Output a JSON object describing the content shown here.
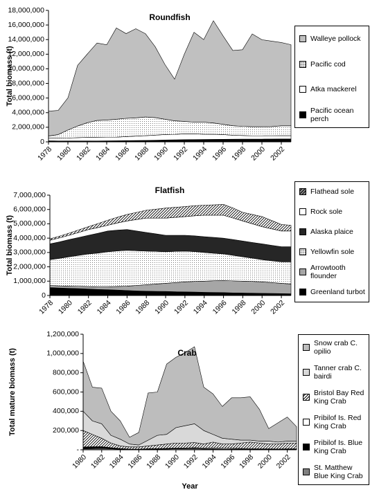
{
  "chart_data": [
    {
      "type": "area",
      "stacked": true,
      "title": "Roundfish",
      "ylabel": "Total biomass (t)",
      "x": [
        1978,
        1979,
        1980,
        1981,
        1982,
        1983,
        1984,
        1985,
        1986,
        1987,
        1988,
        1989,
        1990,
        1991,
        1992,
        1993,
        1994,
        1995,
        1996,
        1997,
        1998,
        1999,
        2000,
        2001,
        2002,
        2003
      ],
      "xlim": [
        1978,
        2003
      ],
      "xticks": [
        1978,
        1980,
        1982,
        1984,
        1986,
        1988,
        1990,
        1992,
        1994,
        1996,
        1998,
        2000,
        2002
      ],
      "ylim": [
        0,
        18000000
      ],
      "yticks": [
        {
          "value": 0,
          "label": "0"
        },
        {
          "value": 2000000,
          "label": "2,000,000"
        },
        {
          "value": 4000000,
          "label": "4,000,000"
        },
        {
          "value": 6000000,
          "label": "6,000,000"
        },
        {
          "value": 8000000,
          "label": "8,000,000"
        },
        {
          "value": 10000000,
          "label": "10,000,000"
        },
        {
          "value": 12000000,
          "label": "12,000,000"
        },
        {
          "value": 14000000,
          "label": "14,000,000"
        },
        {
          "value": 16000000,
          "label": "16,000,000"
        },
        {
          "value": 18000000,
          "label": "18,000,000"
        }
      ],
      "series": [
        {
          "name": "Pacific ocean perch",
          "color": "#000000",
          "values": [
            150000,
            130000,
            120000,
            120000,
            120000,
            130000,
            140000,
            150000,
            170000,
            190000,
            200000,
            220000,
            250000,
            280000,
            300000,
            320000,
            330000,
            340000,
            350000,
            360000,
            370000,
            380000,
            380000,
            390000,
            400000,
            400000
          ]
        },
        {
          "name": "Atka mackerel",
          "color": "#ffffff",
          "values": [
            350000,
            370000,
            400000,
            450000,
            500000,
            500000,
            500000,
            500000,
            550000,
            600000,
            650000,
            700000,
            750000,
            750000,
            800000,
            780000,
            720000,
            700000,
            650000,
            550000,
            500000,
            450000,
            450000,
            450000,
            450000,
            450000
          ]
        },
        {
          "name": "Pacific cod",
          "color": "#e6e6e6",
          "pattern": "dots",
          "values": [
            300000,
            500000,
            1100000,
            1600000,
            2000000,
            2300000,
            2350000,
            2450000,
            2500000,
            2500000,
            2550000,
            2400000,
            2100000,
            1850000,
            1700000,
            1600000,
            1650000,
            1550000,
            1400000,
            1300000,
            1250000,
            1250000,
            1250000,
            1250000,
            1350000,
            1350000
          ]
        },
        {
          "name": "Walleye pollock",
          "color": "#c0c0c0",
          "values": [
            3400000,
            3300000,
            4400000,
            8300000,
            9400000,
            10600000,
            10300000,
            12500000,
            11600000,
            12200000,
            11400000,
            9700000,
            7500000,
            5700000,
            9200000,
            12300000,
            11300000,
            14000000,
            12100000,
            10300000,
            10500000,
            12700000,
            11900000,
            11700000,
            11400000,
            11100000
          ]
        }
      ]
    },
    {
      "type": "area",
      "stacked": true,
      "title": "Flatfish",
      "ylabel": "Total biomass (t)",
      "x": [
        1978,
        1979,
        1980,
        1981,
        1982,
        1983,
        1984,
        1985,
        1986,
        1987,
        1988,
        1989,
        1990,
        1991,
        1992,
        1993,
        1994,
        1995,
        1996,
        1997,
        1998,
        1999,
        2000,
        2001,
        2002,
        2003
      ],
      "xlim": [
        1978,
        2003
      ],
      "xticks": [
        1978,
        1980,
        1982,
        1984,
        1986,
        1988,
        1990,
        1992,
        1994,
        1996,
        1998,
        2000,
        2002
      ],
      "ylim": [
        0,
        7000000
      ],
      "yticks": [
        {
          "value": 0,
          "label": "0"
        },
        {
          "value": 1000000,
          "label": "1,000,000"
        },
        {
          "value": 2000000,
          "label": "2,000,000"
        },
        {
          "value": 3000000,
          "label": "3,000,000"
        },
        {
          "value": 4000000,
          "label": "4,000,000"
        },
        {
          "value": 5000000,
          "label": "5,000,000"
        },
        {
          "value": 6000000,
          "label": "6,000,000"
        },
        {
          "value": 7000000,
          "label": "7,000,000"
        }
      ],
      "series": [
        {
          "name": "Greenland turbot",
          "color": "#000000",
          "values": [
            550000,
            520000,
            500000,
            480000,
            450000,
            420000,
            400000,
            380000,
            350000,
            320000,
            300000,
            290000,
            280000,
            260000,
            250000,
            240000,
            220000,
            210000,
            200000,
            180000,
            170000,
            160000,
            150000,
            140000,
            130000,
            120000
          ]
        },
        {
          "name": "Arrowtooth flounder",
          "color": "#a6a6a6",
          "values": [
            150000,
            150000,
            150000,
            160000,
            170000,
            180000,
            200000,
            250000,
            300000,
            380000,
            450000,
            510000,
            570000,
            640000,
            700000,
            740000,
            780000,
            820000,
            850000,
            840000,
            830000,
            820000,
            800000,
            760000,
            720000,
            680000
          ]
        },
        {
          "name": "Yellowfin sole",
          "color": "#eeeeee",
          "pattern": "dots",
          "values": [
            1800000,
            1920000,
            2050000,
            2160000,
            2280000,
            2360000,
            2450000,
            2480000,
            2500000,
            2420000,
            2350000,
            2280000,
            2200000,
            2180000,
            2150000,
            2080000,
            2000000,
            1920000,
            1850000,
            1780000,
            1700000,
            1620000,
            1550000,
            1520000,
            1500000,
            1550000
          ]
        },
        {
          "name": "Alaska plaice",
          "color": "#262626",
          "values": [
            1100000,
            1150000,
            1200000,
            1250000,
            1300000,
            1380000,
            1450000,
            1450000,
            1450000,
            1380000,
            1300000,
            1220000,
            1150000,
            1120000,
            1100000,
            1100000,
            1100000,
            1100000,
            1100000,
            1100000,
            1100000,
            1100000,
            1100000,
            1080000,
            1050000,
            1050000
          ]
        },
        {
          "name": "Rock sole",
          "color": "#ffffff",
          "values": [
            250000,
            280000,
            300000,
            350000,
            400000,
            400000,
            400000,
            500000,
            600000,
            800000,
            1000000,
            1100000,
            1200000,
            1250000,
            1300000,
            1400000,
            1500000,
            1550000,
            1600000,
            1500000,
            1400000,
            1300000,
            1200000,
            1150000,
            1100000,
            1100000
          ]
        },
        {
          "name": "Flathead sole",
          "color": "#8c8c8c",
          "pattern": "hatch",
          "values": [
            100000,
            120000,
            150000,
            180000,
            200000,
            280000,
            350000,
            400000,
            450000,
            500000,
            550000,
            620000,
            700000,
            700000,
            700000,
            700000,
            700000,
            720000,
            750000,
            700000,
            600000,
            650000,
            700000,
            580000,
            450000,
            400000
          ]
        }
      ]
    },
    {
      "type": "area",
      "stacked": true,
      "title": "Crab",
      "ylabel": "Total mature biomass (t)",
      "xlabel": "Year",
      "x": [
        1980,
        1981,
        1982,
        1983,
        1984,
        1985,
        1986,
        1987,
        1988,
        1989,
        1990,
        1991,
        1992,
        1993,
        1994,
        1995,
        1996,
        1997,
        1998,
        1999,
        2000,
        2001,
        2002,
        2003
      ],
      "xlim": [
        1980,
        2003
      ],
      "xticks": [
        1980,
        1982,
        1984,
        1986,
        1988,
        1990,
        1992,
        1994,
        1996,
        1998,
        2000,
        2002
      ],
      "ylim": [
        0,
        1200000
      ],
      "yticks": [
        {
          "value": 0,
          "label": "-"
        },
        {
          "value": 200000,
          "label": "200,000"
        },
        {
          "value": 400000,
          "label": "400,000"
        },
        {
          "value": 600000,
          "label": "600,000"
        },
        {
          "value": 800000,
          "label": "800,000"
        },
        {
          "value": 1000000,
          "label": "1,000,000"
        },
        {
          "value": 1200000,
          "label": "1,200,000"
        }
      ],
      "series": [
        {
          "name": "St. Matthew Blue King Crab",
          "color": "#808080",
          "values": [
            10000,
            12000,
            15000,
            10000,
            5000,
            3000,
            3000,
            5000,
            6000,
            8000,
            10000,
            10000,
            12000,
            8000,
            8000,
            7000,
            6000,
            6000,
            5000,
            3000,
            3000,
            3000,
            4000,
            4000
          ]
        },
        {
          "name": "Pribilof Is. Blue King Crab",
          "color": "#000000",
          "values": [
            20000,
            20000,
            18000,
            12000,
            8000,
            5000,
            4000,
            4000,
            3000,
            3000,
            3000,
            3000,
            3000,
            3000,
            3000,
            2000,
            2000,
            2000,
            2000,
            2000,
            2000,
            2000,
            2000,
            2000
          ]
        },
        {
          "name": "Pribilof Is. Red King Crab",
          "color": "#ffffff",
          "values": [
            0,
            0,
            0,
            0,
            0,
            0,
            0,
            2000,
            3000,
            4000,
            5000,
            6000,
            8000,
            8000,
            10000,
            8000,
            8000,
            6000,
            6000,
            5000,
            5000,
            4000,
            4000,
            4000
          ]
        },
        {
          "name": "Bristol Bay Red King Crab",
          "color": "#ffffff",
          "pattern": "hatch",
          "values": [
            170000,
            128000,
            87000,
            48000,
            27000,
            22000,
            23000,
            29000,
            38000,
            45000,
            52000,
            51000,
            52000,
            41000,
            59000,
            43000,
            44000,
            56000,
            67000,
            60000,
            50000,
            51000,
            60000,
            60000
          ]
        },
        {
          "name": "Tanner crab C. bairdi",
          "color": "#d9d9d9",
          "values": [
            200000,
            140000,
            150000,
            80000,
            70000,
            30000,
            20000,
            60000,
            100000,
            100000,
            160000,
            180000,
            195000,
            140000,
            80000,
            60000,
            50000,
            30000,
            20000,
            20000,
            30000,
            20000,
            20000,
            20000
          ]
        },
        {
          "name": "Snow crab C. opilio",
          "color": "#bdbdbd",
          "values": [
            520000,
            350000,
            370000,
            250000,
            190000,
            70000,
            130000,
            490000,
            450000,
            730000,
            730000,
            760000,
            800000,
            450000,
            420000,
            330000,
            430000,
            440000,
            450000,
            330000,
            130000,
            200000,
            250000,
            150000
          ]
        }
      ]
    }
  ]
}
